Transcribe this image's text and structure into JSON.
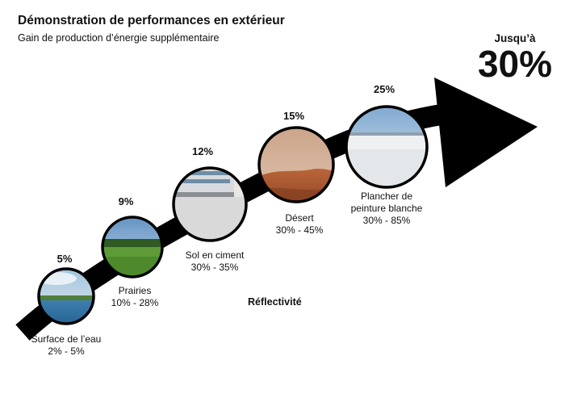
{
  "title": "Démonstration de performances en extérieur",
  "subtitle": "Gain de production d’énergie supplémentaire",
  "max": {
    "label": "Jusqu’à",
    "value": "30%"
  },
  "axis_label": "Réflectivité",
  "colors": {
    "arrow": "#000000",
    "circle_border": "#000000"
  },
  "stages": [
    {
      "gain": "5%",
      "name": "Surface de l’eau",
      "reflectivity": "2% - 5%",
      "image": "lake-landscape"
    },
    {
      "gain": "9%",
      "name": "Prairies",
      "reflectivity": "10% - 28%",
      "image": "grassland"
    },
    {
      "gain": "12%",
      "name": "Sol en ciment",
      "reflectivity": "30% - 35%",
      "image": "concrete-yard"
    },
    {
      "gain": "15%",
      "name": "Désert",
      "reflectivity": "30% - 45%",
      "image": "desert-dunes"
    },
    {
      "gain": "25%",
      "name_line1": "Plancher de",
      "name_line2": "peinture blanche",
      "reflectivity": "30% - 85%",
      "image": "white-salt-flat"
    }
  ]
}
